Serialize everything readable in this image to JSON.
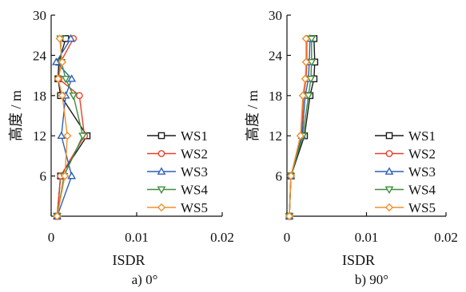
{
  "chart_data": [
    {
      "type": "line",
      "caption": "a)  0°",
      "xlabel": "ISDR",
      "ylabel": "高度 / m",
      "xlim": [
        0,
        0.02
      ],
      "ylim": [
        0,
        30
      ],
      "xticks": [
        "0",
        "0.01",
        "0.02"
      ],
      "yticks": [
        "6",
        "12",
        "18",
        "24",
        "30"
      ],
      "legend_position": "right",
      "series": [
        {
          "name": "WS1",
          "color": "#1a1a1a",
          "marker": "square",
          "points": [
            [
              0.0007,
              0
            ],
            [
              0.0011,
              6
            ],
            [
              0.0042,
              12
            ],
            [
              0.0011,
              18
            ],
            [
              0.0008,
              20.5
            ],
            [
              0.0009,
              23
            ],
            [
              0.0017,
              26.5
            ]
          ]
        },
        {
          "name": "WS2",
          "color": "#e8402a",
          "marker": "circle",
          "points": [
            [
              0.0007,
              0
            ],
            [
              0.0011,
              6
            ],
            [
              0.0039,
              12
            ],
            [
              0.0033,
              18
            ],
            [
              0.0009,
              20.5
            ],
            [
              0.0011,
              23
            ],
            [
              0.0026,
              26.5
            ]
          ]
        },
        {
          "name": "WS3",
          "color": "#2f5fb5",
          "marker": "triangle-up",
          "points": [
            [
              0.0007,
              0
            ],
            [
              0.0024,
              6
            ],
            [
              0.0012,
              12
            ],
            [
              0.0017,
              18
            ],
            [
              0.0024,
              20.5
            ],
            [
              0.0006,
              23
            ],
            [
              0.0023,
              26.5
            ]
          ]
        },
        {
          "name": "WS4",
          "color": "#3e8d3e",
          "marker": "triangle-down",
          "points": [
            [
              0.0007,
              0
            ],
            [
              0.0015,
              6
            ],
            [
              0.0037,
              12
            ],
            [
              0.0026,
              18
            ],
            [
              0.0017,
              20.5
            ],
            [
              0.0012,
              23
            ],
            [
              0.0011,
              26.5
            ]
          ]
        },
        {
          "name": "WS5",
          "color": "#f0902e",
          "marker": "diamond",
          "points": [
            [
              0.0007,
              0
            ],
            [
              0.0016,
              6
            ],
            [
              0.0019,
              12
            ],
            [
              0.0013,
              18
            ],
            [
              0.0008,
              20.5
            ],
            [
              0.0013,
              23
            ],
            [
              0.001,
              26.5
            ]
          ]
        }
      ]
    },
    {
      "type": "line",
      "caption": "b)  90°",
      "xlabel": "ISDR",
      "ylabel": "高度 / m",
      "xlim": [
        0,
        0.02
      ],
      "ylim": [
        0,
        30
      ],
      "xticks": [
        "0",
        "0.01",
        "0.02"
      ],
      "yticks": [
        "6",
        "12",
        "18",
        "24",
        "30"
      ],
      "legend_position": "right",
      "series": [
        {
          "name": "WS1",
          "color": "#1a1a1a",
          "marker": "square",
          "points": [
            [
              0.0003,
              0
            ],
            [
              0.0005,
              6
            ],
            [
              0.0022,
              12
            ],
            [
              0.0029,
              18
            ],
            [
              0.0034,
              20.5
            ],
            [
              0.0035,
              23
            ],
            [
              0.0034,
              26.5
            ]
          ]
        },
        {
          "name": "WS2",
          "color": "#e8402a",
          "marker": "circle",
          "points": [
            [
              0.0003,
              0
            ],
            [
              0.0005,
              6
            ],
            [
              0.0018,
              12
            ],
            [
              0.0021,
              18
            ],
            [
              0.0024,
              20.5
            ],
            [
              0.0025,
              23
            ],
            [
              0.0025,
              26.5
            ]
          ]
        },
        {
          "name": "WS3",
          "color": "#2f5fb5",
          "marker": "triangle-up",
          "points": [
            [
              0.0003,
              0
            ],
            [
              0.0005,
              6
            ],
            [
              0.0019,
              12
            ],
            [
              0.0023,
              18
            ],
            [
              0.0027,
              20.5
            ],
            [
              0.0028,
              23
            ],
            [
              0.0029,
              26.5
            ]
          ]
        },
        {
          "name": "WS4",
          "color": "#3e8d3e",
          "marker": "triangle-down",
          "points": [
            [
              0.0003,
              0
            ],
            [
              0.0005,
              6
            ],
            [
              0.002,
              12
            ],
            [
              0.0027,
              18
            ],
            [
              0.003,
              20.5
            ],
            [
              0.0031,
              23
            ],
            [
              0.0031,
              26.5
            ]
          ]
        },
        {
          "name": "WS5",
          "color": "#f0902e",
          "marker": "diamond",
          "points": [
            [
              0.0003,
              0
            ],
            [
              0.0005,
              6
            ],
            [
              0.0017,
              12
            ],
            [
              0.002,
              18
            ],
            [
              0.0023,
              20.5
            ],
            [
              0.0024,
              23
            ],
            [
              0.0024,
              26.5
            ]
          ]
        }
      ]
    }
  ]
}
